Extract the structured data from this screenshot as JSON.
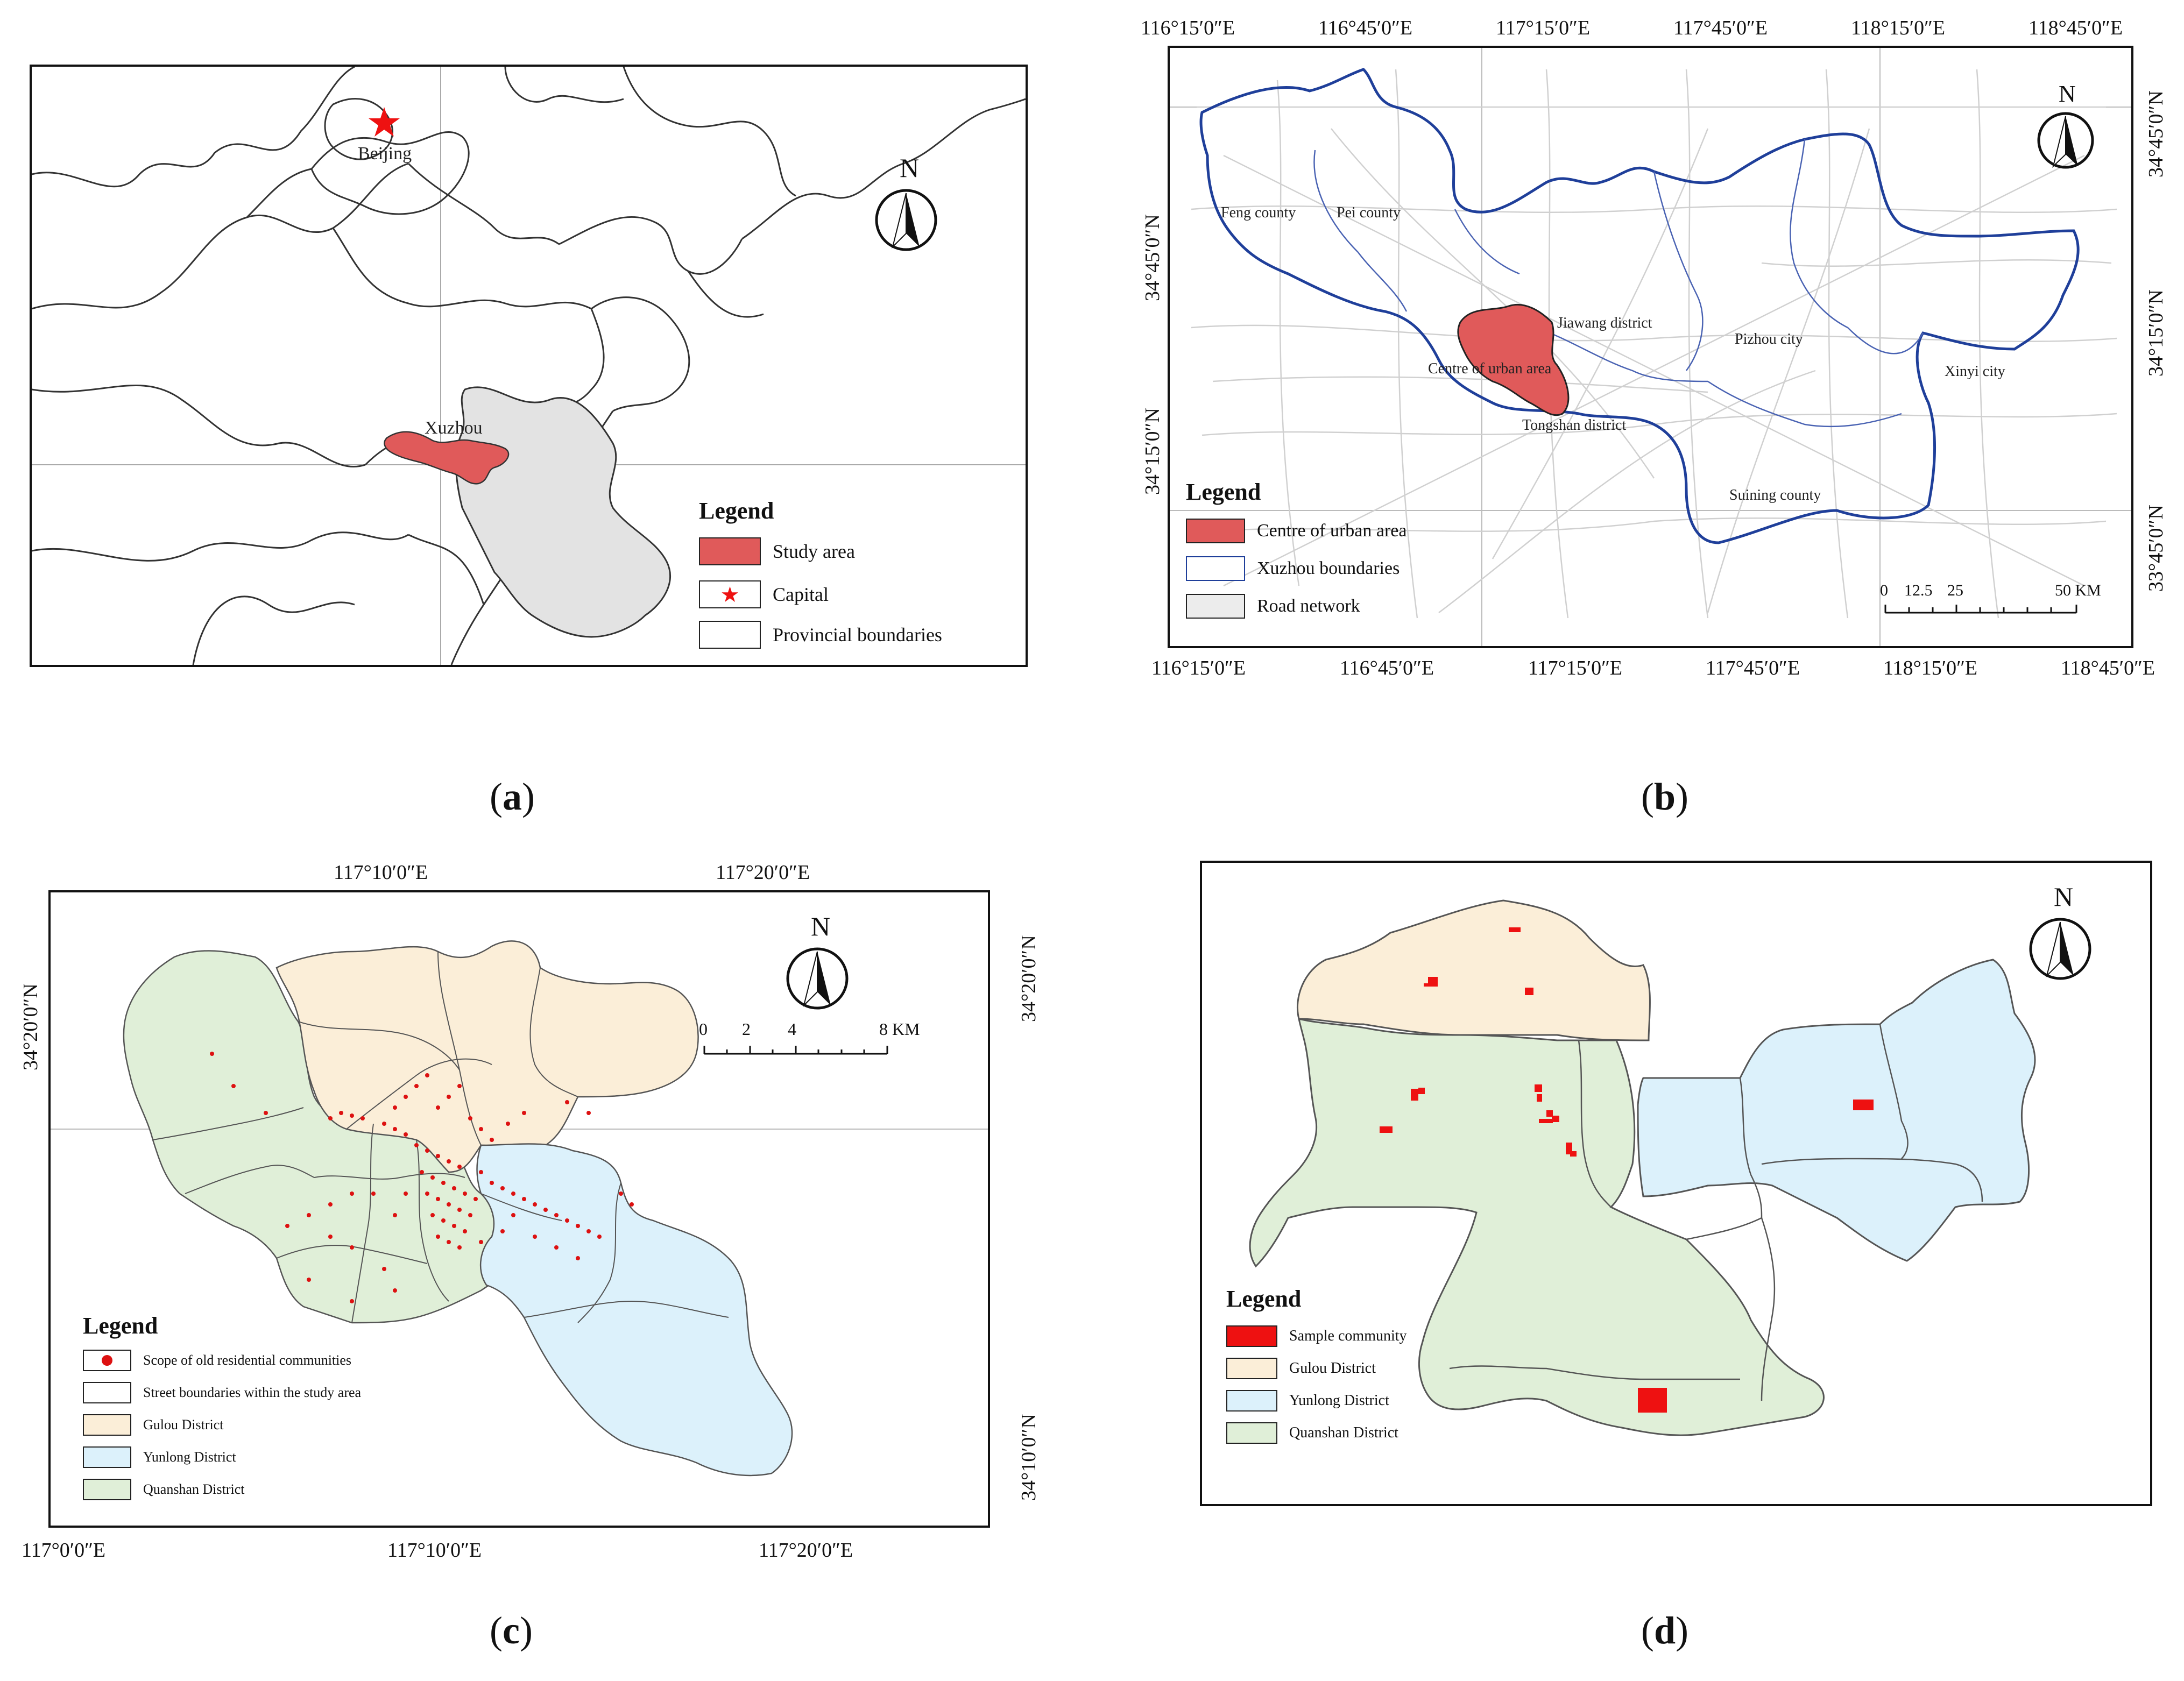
{
  "captions": [
    "a",
    "b",
    "c",
    "d"
  ],
  "colors": {
    "study_area": "#e05a5a",
    "sample": "#ee1111",
    "gulou": "#fbeed8",
    "yunlong": "#dcf1fb",
    "quanshan": "#e0efd8",
    "jiangsu": "#e3e3e3",
    "xuzhou_boundary": "#1f3f9a",
    "road": "#d0d0d0",
    "dot": "#dd1111"
  },
  "north_label": "N",
  "panel_a": {
    "places": [
      "Beijing",
      "Xuzhou"
    ],
    "legend": {
      "title": "Legend",
      "items": [
        "Study area",
        "Capital",
        "Provincial boundaries"
      ]
    }
  },
  "panel_b": {
    "top_lon": [
      "116°15′0″E",
      "116°45′0″E",
      "117°15′0″E",
      "117°45′0″E",
      "118°15′0″E",
      "118°45′0″E"
    ],
    "bottom_lon": [
      "116°15′0″E",
      "116°45′0″E",
      "117°15′0″E",
      "117°45′0″E",
      "118°15′0″E",
      "118°45′0″E"
    ],
    "left_lat": [
      "34°45′0″N",
      "34°15′0″N"
    ],
    "right_lat": [
      "34°45′0″N",
      "34°15′0″N",
      "33°45′0″N"
    ],
    "places": [
      "Feng county",
      "Pei county",
      "Jiawang district",
      "Pizhou city",
      "Xinyi city",
      "Centre of urban area",
      "Tongshan district",
      "Suining county"
    ],
    "scale": [
      "0",
      "12.5",
      "25",
      "50 KM"
    ],
    "legend": {
      "title": "Legend",
      "items": [
        "Centre of urban area",
        "Xuzhou boundaries",
        "Road network"
      ]
    }
  },
  "panel_c": {
    "top_lon": [
      "117°10′0″E",
      "117°20′0″E"
    ],
    "bottom_lon": [
      "117°0′0″E",
      "117°10′0″E",
      "117°20′0″E"
    ],
    "left_lat": [
      "34°20′0″N"
    ],
    "right_lat": [
      "34°20′0″N",
      "34°10′0″N"
    ],
    "scale": [
      "0",
      "2",
      "4",
      "8 KM"
    ],
    "legend": {
      "title": "Legend",
      "items": [
        "Scope of old residential communities",
        "Street boundaries within the study area",
        "Gulou District",
        "Yunlong District",
        "Quanshan District"
      ]
    }
  },
  "panel_d": {
    "legend": {
      "title": "Legend",
      "items": [
        "Sample community",
        "Gulou District",
        "Yunlong District",
        "Quanshan District"
      ]
    }
  }
}
